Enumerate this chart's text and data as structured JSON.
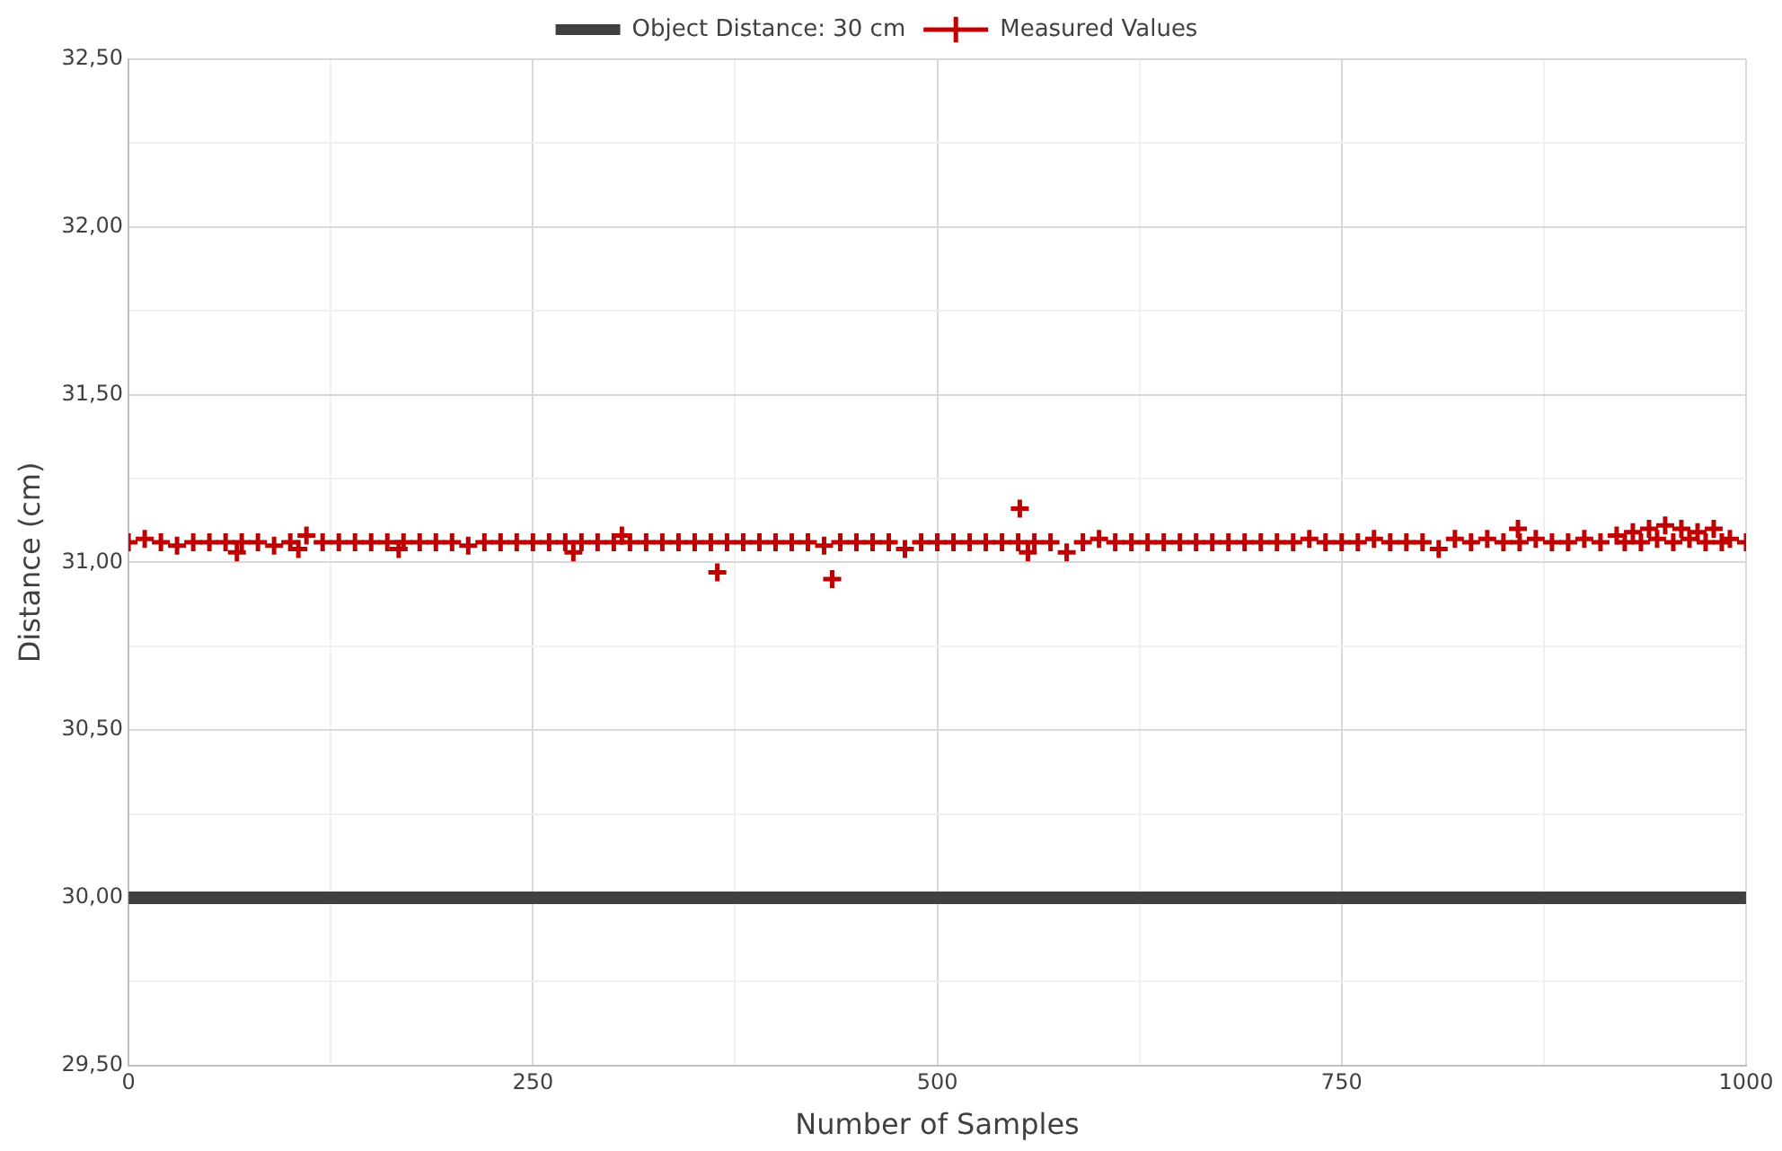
{
  "chart_data": {
    "type": "scatter",
    "xlabel": "Number of Samples",
    "ylabel": "Distance (cm)",
    "legend": "top",
    "grid": true,
    "xlim": [
      0,
      1000
    ],
    "xticks": [
      0,
      {
        "value": 125,
        "label": null
      },
      250,
      {
        "value": 375,
        "label": null
      },
      500,
      {
        "value": 625,
        "label": null
      },
      750,
      {
        "value": 875,
        "label": null
      },
      1000
    ],
    "ylim": [
      29.5,
      32.5
    ],
    "yticks": [
      {
        "value": 29.5,
        "label": "29,50"
      },
      {
        "value": 29.75,
        "label": null
      },
      {
        "value": 30,
        "label": "30,00"
      },
      {
        "value": 30.25,
        "label": null
      },
      {
        "value": 30.5,
        "label": "30,50"
      },
      {
        "value": 30.75,
        "label": null
      },
      {
        "value": 31,
        "label": "31,00"
      },
      {
        "value": 31.25,
        "label": null
      },
      {
        "value": 31.5,
        "label": "31,50"
      },
      {
        "value": 31.75,
        "label": null
      },
      {
        "value": 32,
        "label": "32,00"
      },
      {
        "value": 32.25,
        "label": null
      },
      {
        "value": 32.5,
        "label": "32,50"
      }
    ],
    "series": [
      {
        "name": "Object Distance: 30 cm",
        "type": "line",
        "color": "#404040",
        "marker": "none",
        "line_style": "solid",
        "x": [
          0,
          1000
        ],
        "values": [
          30,
          30
        ]
      },
      {
        "name": "Measured Values",
        "color": "#c00000",
        "marker": "cross",
        "x": [
          0,
          10,
          20,
          30,
          40,
          50,
          60,
          67,
          70,
          80,
          90,
          100,
          105,
          110,
          120,
          130,
          140,
          150,
          160,
          167,
          170,
          180,
          190,
          200,
          210,
          220,
          230,
          240,
          250,
          260,
          270,
          275,
          280,
          290,
          300,
          305,
          310,
          320,
          330,
          340,
          350,
          360,
          364,
          370,
          380,
          390,
          400,
          410,
          420,
          430,
          435,
          440,
          450,
          460,
          470,
          480,
          490,
          500,
          510,
          520,
          530,
          540,
          550,
          551,
          556,
          560,
          570,
          580,
          590,
          600,
          610,
          620,
          630,
          640,
          650,
          660,
          670,
          680,
          690,
          700,
          710,
          720,
          730,
          740,
          750,
          760,
          770,
          780,
          790,
          800,
          810,
          820,
          830,
          840,
          850,
          859,
          860,
          870,
          880,
          890,
          900,
          910,
          920,
          925,
          930,
          935,
          940,
          945,
          950,
          955,
          960,
          965,
          970,
          975,
          980,
          985,
          990,
          1000
        ],
        "values": [
          31.06,
          31.07,
          31.06,
          31.05,
          31.06,
          31.06,
          31.06,
          31.03,
          31.06,
          31.06,
          31.05,
          31.06,
          31.04,
          31.08,
          31.06,
          31.06,
          31.06,
          31.06,
          31.06,
          31.04,
          31.06,
          31.06,
          31.06,
          31.06,
          31.05,
          31.06,
          31.06,
          31.06,
          31.06,
          31.06,
          31.06,
          31.03,
          31.06,
          31.06,
          31.06,
          31.08,
          31.06,
          31.06,
          31.06,
          31.06,
          31.06,
          31.06,
          30.97,
          31.06,
          31.06,
          31.06,
          31.06,
          31.06,
          31.06,
          31.05,
          30.95,
          31.06,
          31.06,
          31.06,
          31.06,
          31.04,
          31.06,
          31.06,
          31.06,
          31.06,
          31.06,
          31.06,
          31.06,
          31.16,
          31.03,
          31.06,
          31.06,
          31.03,
          31.06,
          31.07,
          31.06,
          31.06,
          31.06,
          31.06,
          31.06,
          31.06,
          31.06,
          31.06,
          31.06,
          31.06,
          31.06,
          31.06,
          31.07,
          31.06,
          31.06,
          31.06,
          31.07,
          31.06,
          31.06,
          31.06,
          31.04,
          31.07,
          31.06,
          31.07,
          31.06,
          31.1,
          31.06,
          31.07,
          31.06,
          31.06,
          31.07,
          31.06,
          31.08,
          31.06,
          31.09,
          31.06,
          31.1,
          31.07,
          31.11,
          31.06,
          31.1,
          31.07,
          31.09,
          31.06,
          31.1,
          31.06,
          31.07,
          31.06
        ]
      }
    ]
  }
}
